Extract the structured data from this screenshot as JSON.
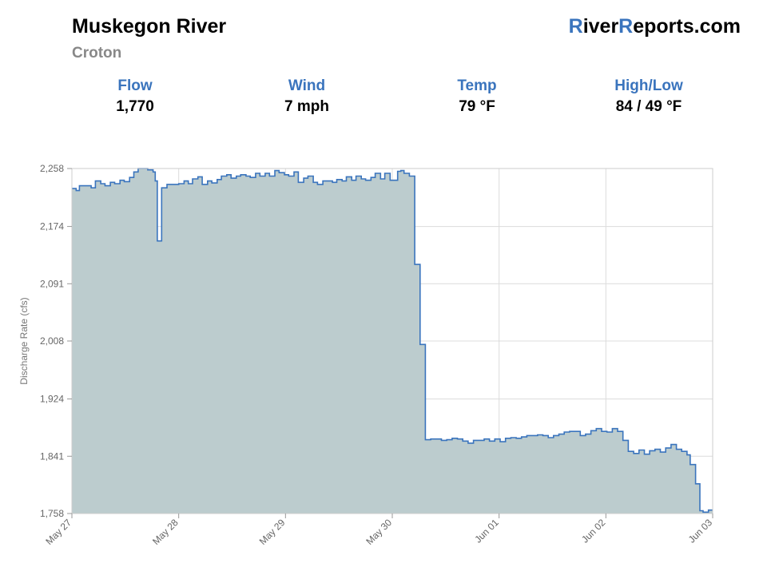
{
  "header": {
    "river": "Muskegon River",
    "site": "Croton",
    "brand_r1": "R",
    "brand_mid": "iver",
    "brand_r2": "R",
    "brand_end": "eports.com"
  },
  "stats": [
    {
      "label": "Flow",
      "value": "1,770"
    },
    {
      "label": "Wind",
      "value": "7 mph"
    },
    {
      "label": "Temp",
      "value": "79 °F"
    },
    {
      "label": "High/Low",
      "value": "84 / 49 °F"
    }
  ],
  "colors": {
    "accent": "#3a74bd",
    "fill": "#bcccce",
    "grid": "#dcdcdc"
  },
  "chart_data": {
    "type": "area",
    "ylabel": "Discharge Rate (cfs)",
    "ylim": [
      1758,
      2258
    ],
    "yticks": [
      1758,
      1841,
      1924,
      2008,
      2091,
      2174,
      2258
    ],
    "ytick_labels": [
      "1,758",
      "1,841",
      "1,924",
      "2,008",
      "2,091",
      "2,174",
      "2,258"
    ],
    "xlim": [
      0,
      6
    ],
    "xticks": [
      0,
      1,
      2,
      3,
      4,
      5,
      6
    ],
    "xtick_labels": [
      "May 27",
      "May 28",
      "May 29",
      "May 30",
      "Jun 01",
      "Jun 02",
      "Jun 03"
    ],
    "grid": true,
    "series": [
      {
        "step": true,
        "x": [
          0,
          0.04,
          0.07,
          0.13,
          0.18,
          0.22,
          0.27,
          0.31,
          0.36,
          0.4,
          0.45,
          0.49,
          0.54,
          0.58,
          0.62,
          0.67,
          0.71,
          0.76,
          0.78,
          0.8,
          0.84,
          0.89,
          0.93,
          1.0,
          1.05,
          1.09,
          1.13,
          1.18,
          1.22,
          1.27,
          1.31,
          1.36,
          1.4,
          1.45,
          1.49,
          1.54,
          1.58,
          1.63,
          1.67,
          1.72,
          1.76,
          1.81,
          1.85,
          1.9,
          1.94,
          1.99,
          2.03,
          2.08,
          2.12,
          2.17,
          2.21,
          2.26,
          2.3,
          2.35,
          2.39,
          2.44,
          2.48,
          2.53,
          2.57,
          2.62,
          2.66,
          2.71,
          2.75,
          2.8,
          2.84,
          2.89,
          2.93,
          2.98,
          3.02,
          3.05,
          3.08,
          3.11,
          3.16,
          3.21,
          3.26,
          3.31,
          3.36,
          3.41,
          3.46,
          3.51,
          3.56,
          3.61,
          3.66,
          3.71,
          3.76,
          3.81,
          3.86,
          3.91,
          3.96,
          4.01,
          4.06,
          4.11,
          4.16,
          4.21,
          4.26,
          4.31,
          4.36,
          4.41,
          4.46,
          4.51,
          4.56,
          4.61,
          4.66,
          4.71,
          4.76,
          4.81,
          4.86,
          4.91,
          4.96,
          5.01,
          5.06,
          5.11,
          5.16,
          5.21,
          5.26,
          5.31,
          5.36,
          5.41,
          5.46,
          5.51,
          5.56,
          5.61,
          5.66,
          5.71,
          5.76,
          5.79,
          5.84,
          5.88,
          5.91,
          5.96,
          6.0
        ],
        "y": [
          2229,
          2226,
          2233,
          2233,
          2230,
          2240,
          2236,
          2233,
          2238,
          2236,
          2241,
          2239,
          2245,
          2253,
          2258,
          2258,
          2256,
          2253,
          2240,
          2153,
          2230,
          2235,
          2235,
          2236,
          2240,
          2236,
          2243,
          2246,
          2235,
          2240,
          2237,
          2242,
          2247,
          2249,
          2244,
          2247,
          2249,
          2247,
          2245,
          2251,
          2247,
          2251,
          2247,
          2255,
          2252,
          2249,
          2247,
          2253,
          2238,
          2244,
          2247,
          2238,
          2235,
          2240,
          2240,
          2238,
          2242,
          2240,
          2246,
          2241,
          2247,
          2243,
          2241,
          2245,
          2251,
          2243,
          2251,
          2241,
          2241,
          2254,
          2255,
          2251,
          2247,
          2119,
          2003,
          1865,
          1866,
          1866,
          1864,
          1865,
          1867,
          1866,
          1863,
          1860,
          1864,
          1864,
          1866,
          1863,
          1866,
          1862,
          1867,
          1868,
          1867,
          1869,
          1871,
          1871,
          1872,
          1871,
          1868,
          1871,
          1873,
          1876,
          1877,
          1877,
          1871,
          1873,
          1878,
          1881,
          1877,
          1876,
          1881,
          1877,
          1864,
          1848,
          1845,
          1850,
          1844,
          1849,
          1851,
          1847,
          1853,
          1858,
          1851,
          1848,
          1843,
          1829,
          1801,
          1762,
          1760,
          1763,
          1763
        ]
      }
    ]
  }
}
